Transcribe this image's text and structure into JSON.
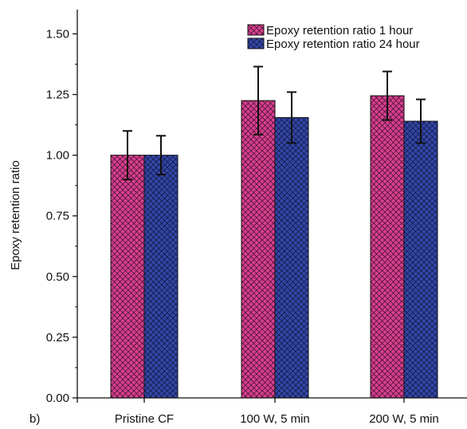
{
  "chart_data": {
    "type": "bar",
    "panel_label": "b)",
    "title": "",
    "xlabel": "",
    "ylabel": "Epoxy retention ratio",
    "ylim": [
      0,
      1.6
    ],
    "yticks": [
      "0.00",
      "0.25",
      "0.50",
      "0.75",
      "1.00",
      "1.25",
      "1.50"
    ],
    "categories": [
      "Pristine CF",
      "100 W, 5 min",
      "200 W, 5 min"
    ],
    "legend_position": "top-right",
    "grid": false,
    "series": [
      {
        "name": "Epoxy retention ratio 1 hour",
        "color": "#d63f8f",
        "hatch": "crosshatch",
        "values": [
          1.0,
          1.225,
          1.245
        ],
        "errors": [
          0.1,
          0.14,
          0.1
        ]
      },
      {
        "name": "Epoxy retention ratio 24 hour",
        "color": "#3346a6",
        "hatch": "crosshatch",
        "values": [
          1.0,
          1.155,
          1.14
        ],
        "errors": [
          0.08,
          0.105,
          0.09
        ]
      }
    ]
  }
}
